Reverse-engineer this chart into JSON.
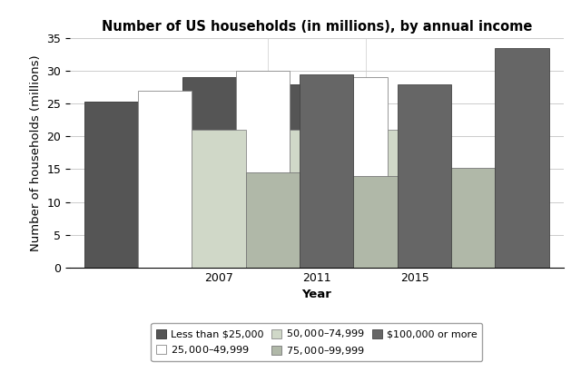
{
  "title": "Number of US households (in millions), by annual income",
  "xlabel": "Year",
  "ylabel": "Number of households (millions)",
  "years": [
    "2007",
    "2011",
    "2015"
  ],
  "categories": [
    "Less than $25,000",
    "$25,000–$49,999",
    "$50,000–$74,999",
    "$75,000–$99,999",
    "$100,000 or more"
  ],
  "values": {
    "Less than $25,000": [
      25.3,
      29.0,
      28.0
    ],
    "$25,000–$49,999": [
      27.0,
      30.0,
      29.0
    ],
    "$50,000–$74,999": [
      21.0,
      21.0,
      21.0
    ],
    "$75,000–$99,999": [
      14.5,
      14.0,
      15.2
    ],
    "$100,000 or more": [
      29.5,
      28.0,
      33.5
    ]
  },
  "colors": [
    "#555555",
    "#ffffff",
    "#d0d8c8",
    "#b0b8a8",
    "#666666"
  ],
  "edgecolors": [
    "#333333",
    "#888888",
    "#888888",
    "#777777",
    "#444444"
  ],
  "ylim": [
    0,
    35
  ],
  "yticks": [
    0,
    5,
    10,
    15,
    20,
    25,
    30,
    35
  ],
  "bar_width": 0.55,
  "figsize": [
    6.4,
    4.21
  ],
  "dpi": 100,
  "legend_ncol": 3,
  "legend_fontsize": 8.0,
  "title_fontsize": 10.5,
  "axis_label_fontsize": 9.5,
  "tick_fontsize": 9
}
